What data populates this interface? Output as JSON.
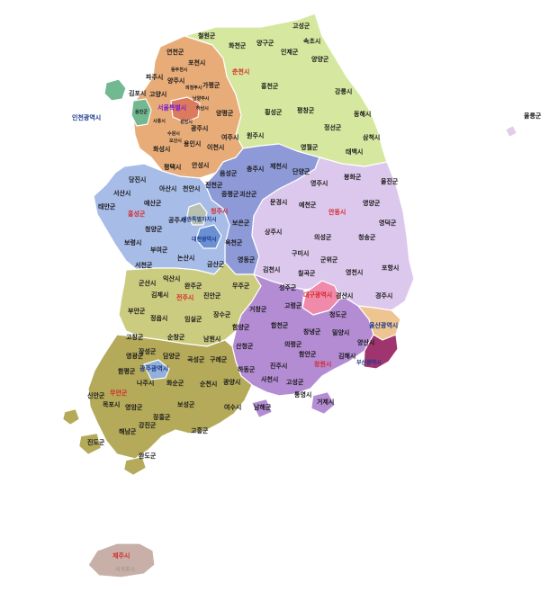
{
  "colors": {
    "gangwon": "#d6e8a0",
    "gyeonggi": "#e8ac78",
    "incheon": "#72b890",
    "seoul": "#dc7a5e",
    "chungbuk": "#8e9ad8",
    "chungnam": "#a8bce8",
    "daejeon": "#6a90d4",
    "sejong": "#b8c0b0",
    "jeonbuk": "#cccc80",
    "jeonnam": "#b4aa5a",
    "gwangju": "#94b0d8",
    "gyeongbuk": "#dcc8ec",
    "daegu": "#f08aaa",
    "gyeongnam": "#b48cd4",
    "busan": "#a0346e",
    "ulsan": "#eec490",
    "jeju": "#c8b0a8",
    "ulleung": "#e2cde8"
  },
  "labels": {
    "gangwon": [
      {
        "name": "고성군",
        "kind": "normal"
      },
      {
        "name": "철원군",
        "kind": "normal"
      },
      {
        "name": "화천군",
        "kind": "normal"
      },
      {
        "name": "양구군",
        "kind": "normal"
      },
      {
        "name": "속초시",
        "kind": "normal"
      },
      {
        "name": "인제군",
        "kind": "normal"
      },
      {
        "name": "양양군",
        "kind": "normal"
      },
      {
        "name": "춘천시",
        "kind": "capital"
      },
      {
        "name": "홍천군",
        "kind": "normal"
      },
      {
        "name": "강릉시",
        "kind": "normal"
      },
      {
        "name": "횡성군",
        "kind": "normal"
      },
      {
        "name": "평창군",
        "kind": "normal"
      },
      {
        "name": "동해시",
        "kind": "normal"
      },
      {
        "name": "정선군",
        "kind": "normal"
      },
      {
        "name": "원주시",
        "kind": "normal"
      },
      {
        "name": "삼척시",
        "kind": "normal"
      },
      {
        "name": "영월군",
        "kind": "normal"
      },
      {
        "name": "태백시",
        "kind": "normal"
      }
    ],
    "gyeonggi": [
      {
        "name": "연천군",
        "kind": "normal"
      },
      {
        "name": "포천시",
        "kind": "normal"
      },
      {
        "name": "동두천시",
        "kind": "normal"
      },
      {
        "name": "파주시",
        "kind": "normal"
      },
      {
        "name": "양주시",
        "kind": "normal"
      },
      {
        "name": "의정부시",
        "kind": "normal"
      },
      {
        "name": "남양주시",
        "kind": "normal"
      },
      {
        "name": "가평군",
        "kind": "normal"
      },
      {
        "name": "고양시",
        "kind": "normal"
      },
      {
        "name": "김포시",
        "kind": "normal"
      },
      {
        "name": "서울특별시",
        "kind": "sejong"
      },
      {
        "name": "하남시",
        "kind": "normal"
      },
      {
        "name": "양평군",
        "kind": "normal"
      },
      {
        "name": "시흥시",
        "kind": "normal"
      },
      {
        "name": "성남시",
        "kind": "normal"
      },
      {
        "name": "광주시",
        "kind": "normal"
      },
      {
        "name": "수원시",
        "kind": "normal"
      },
      {
        "name": "화성시",
        "kind": "normal"
      },
      {
        "name": "용인시",
        "kind": "normal"
      },
      {
        "name": "이천시",
        "kind": "normal"
      },
      {
        "name": "여주시",
        "kind": "normal"
      },
      {
        "name": "오산시",
        "kind": "normal"
      },
      {
        "name": "평택시",
        "kind": "normal"
      },
      {
        "name": "안성시",
        "kind": "normal"
      }
    ],
    "incheon": [
      {
        "name": "인천광역시",
        "kind": "metro"
      },
      {
        "name": "옹진군",
        "kind": "normal"
      }
    ],
    "ulleung": [
      {
        "name": "울릉군",
        "kind": "normal"
      }
    ],
    "chungbuk": [
      {
        "name": "충주시",
        "kind": "normal"
      },
      {
        "name": "제천시",
        "kind": "normal"
      },
      {
        "name": "단양군",
        "kind": "normal"
      },
      {
        "name": "음성군",
        "kind": "normal"
      },
      {
        "name": "진천군",
        "kind": "normal"
      },
      {
        "name": "증평군",
        "kind": "normal"
      },
      {
        "name": "괴산군",
        "kind": "normal"
      },
      {
        "name": "청주시",
        "kind": "capital"
      },
      {
        "name": "보은군",
        "kind": "normal"
      },
      {
        "name": "옥천군",
        "kind": "normal"
      },
      {
        "name": "영동군",
        "kind": "normal"
      }
    ],
    "chungnam": [
      {
        "name": "당진시",
        "kind": "normal"
      },
      {
        "name": "아산시",
        "kind": "normal"
      },
      {
        "name": "천안시",
        "kind": "normal"
      },
      {
        "name": "서산시",
        "kind": "normal"
      },
      {
        "name": "예산군",
        "kind": "normal"
      },
      {
        "name": "태안군",
        "kind": "normal"
      },
      {
        "name": "홍성군",
        "kind": "capital"
      },
      {
        "name": "세종특별자치시",
        "kind": "metro"
      },
      {
        "name": "공주시",
        "kind": "normal"
      },
      {
        "name": "청양군",
        "kind": "normal"
      },
      {
        "name": "대전광역시",
        "kind": "metro"
      },
      {
        "name": "보령시",
        "kind": "normal"
      },
      {
        "name": "부여군",
        "kind": "normal"
      },
      {
        "name": "논산시",
        "kind": "normal"
      },
      {
        "name": "금산군",
        "kind": "normal"
      },
      {
        "name": "서천군",
        "kind": "normal"
      }
    ],
    "gyeongbuk": [
      {
        "name": "봉화군",
        "kind": "normal"
      },
      {
        "name": "울진군",
        "kind": "normal"
      },
      {
        "name": "영주시",
        "kind": "normal"
      },
      {
        "name": "문경시",
        "kind": "normal"
      },
      {
        "name": "예천군",
        "kind": "normal"
      },
      {
        "name": "안동시",
        "kind": "capital"
      },
      {
        "name": "영양군",
        "kind": "normal"
      },
      {
        "name": "영덕군",
        "kind": "normal"
      },
      {
        "name": "상주시",
        "kind": "normal"
      },
      {
        "name": "의성군",
        "kind": "normal"
      },
      {
        "name": "청송군",
        "kind": "normal"
      },
      {
        "name": "구미시",
        "kind": "normal"
      },
      {
        "name": "군위군",
        "kind": "normal"
      },
      {
        "name": "김천시",
        "kind": "normal"
      },
      {
        "name": "칠곡군",
        "kind": "normal"
      },
      {
        "name": "영천시",
        "kind": "normal"
      },
      {
        "name": "포항시",
        "kind": "normal"
      },
      {
        "name": "성주군",
        "kind": "normal"
      },
      {
        "name": "대구광역시",
        "kind": "metro-red"
      },
      {
        "name": "경산시",
        "kind": "normal"
      },
      {
        "name": "경주시",
        "kind": "normal"
      },
      {
        "name": "고령군",
        "kind": "normal"
      },
      {
        "name": "청도군",
        "kind": "normal"
      }
    ],
    "jeonbuk": [
      {
        "name": "익산시",
        "kind": "normal"
      },
      {
        "name": "군산시",
        "kind": "normal"
      },
      {
        "name": "완주군",
        "kind": "normal"
      },
      {
        "name": "무주군",
        "kind": "normal"
      },
      {
        "name": "김제시",
        "kind": "normal"
      },
      {
        "name": "전주시",
        "kind": "capital"
      },
      {
        "name": "진안군",
        "kind": "normal"
      },
      {
        "name": "부안군",
        "kind": "normal"
      },
      {
        "name": "장수군",
        "kind": "normal"
      },
      {
        "name": "정읍시",
        "kind": "normal"
      },
      {
        "name": "임실군",
        "kind": "normal"
      },
      {
        "name": "고창군",
        "kind": "normal"
      },
      {
        "name": "순창군",
        "kind": "normal"
      },
      {
        "name": "남원시",
        "kind": "normal"
      }
    ],
    "gyeongnam": [
      {
        "name": "거창군",
        "kind": "normal"
      },
      {
        "name": "합천군",
        "kind": "normal"
      },
      {
        "name": "함양군",
        "kind": "normal"
      },
      {
        "name": "창녕군",
        "kind": "normal"
      },
      {
        "name": "밀양시",
        "kind": "normal"
      },
      {
        "name": "울산광역시",
        "kind": "metro"
      },
      {
        "name": "산청군",
        "kind": "normal"
      },
      {
        "name": "의령군",
        "kind": "normal"
      },
      {
        "name": "양산시",
        "kind": "normal"
      },
      {
        "name": "함안군",
        "kind": "normal"
      },
      {
        "name": "김해시",
        "kind": "normal"
      },
      {
        "name": "창원시",
        "kind": "capital"
      },
      {
        "name": "부산광역시",
        "kind": "metro"
      },
      {
        "name": "하동군",
        "kind": "normal"
      },
      {
        "name": "진주시",
        "kind": "normal"
      },
      {
        "name": "사천시",
        "kind": "normal"
      },
      {
        "name": "고성군",
        "kind": "normal"
      },
      {
        "name": "남해군",
        "kind": "normal"
      },
      {
        "name": "통영시",
        "kind": "normal"
      },
      {
        "name": "거제시",
        "kind": "normal"
      }
    ],
    "jeonnam": [
      {
        "name": "영광군",
        "kind": "normal"
      },
      {
        "name": "장성군",
        "kind": "normal"
      },
      {
        "name": "담양군",
        "kind": "normal"
      },
      {
        "name": "곡성군",
        "kind": "normal"
      },
      {
        "name": "구례군",
        "kind": "normal"
      },
      {
        "name": "광주광역시",
        "kind": "metro"
      },
      {
        "name": "함평군",
        "kind": "normal"
      },
      {
        "name": "나주시",
        "kind": "normal"
      },
      {
        "name": "화순군",
        "kind": "normal"
      },
      {
        "name": "순천시",
        "kind": "normal"
      },
      {
        "name": "광양시",
        "kind": "normal"
      },
      {
        "name": "신안군",
        "kind": "normal"
      },
      {
        "name": "무안군",
        "kind": "capital"
      },
      {
        "name": "목포시",
        "kind": "normal"
      },
      {
        "name": "영암군",
        "kind": "normal"
      },
      {
        "name": "보성군",
        "kind": "normal"
      },
      {
        "name": "여수시",
        "kind": "normal"
      },
      {
        "name": "장흥군",
        "kind": "normal"
      },
      {
        "name": "강진군",
        "kind": "normal"
      },
      {
        "name": "해남군",
        "kind": "normal"
      },
      {
        "name": "고흥군",
        "kind": "normal"
      },
      {
        "name": "진도군",
        "kind": "normal"
      },
      {
        "name": "완도군",
        "kind": "normal"
      }
    ],
    "jeju": [
      {
        "name": "제주시",
        "kind": "capital"
      },
      {
        "name": "서귀포시",
        "kind": "normal"
      }
    ]
  }
}
